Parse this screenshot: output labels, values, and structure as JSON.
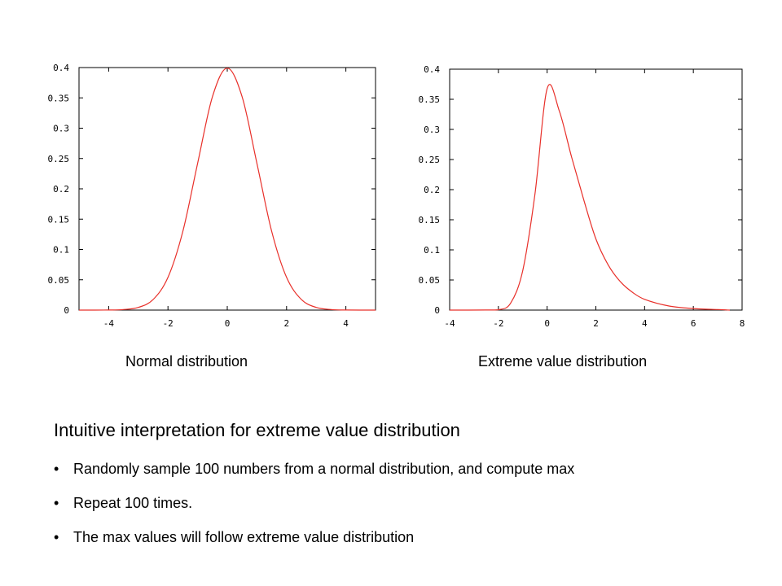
{
  "chart_data": [
    {
      "type": "line",
      "caption": "Normal distribution",
      "xlim": [
        -5,
        5
      ],
      "ylim": [
        0,
        0.4
      ],
      "x_ticks": [
        -4,
        -2,
        0,
        2,
        4
      ],
      "y_ticks": [
        0,
        0.05,
        0.1,
        0.15,
        0.2,
        0.25,
        0.3,
        0.35,
        0.4
      ],
      "x_tick_labels": [
        "-4",
        "-2",
        "0",
        "2",
        "4"
      ],
      "y_tick_labels": [
        "0",
        "0.05",
        "0.1",
        "0.15",
        "0.2",
        "0.25",
        "0.3",
        "0.35",
        "0.4"
      ],
      "line_color": "#e8302a",
      "series": [
        {
          "x": [
            -5,
            -4,
            -3.5,
            -3,
            -2.5,
            -2,
            -1.5,
            -1,
            -0.5,
            0,
            0.5,
            1,
            1.5,
            2,
            2.5,
            3,
            3.5,
            4,
            5
          ],
          "y": [
            0,
            0.0001,
            0.0009,
            0.0044,
            0.0175,
            0.054,
            0.1295,
            0.242,
            0.352,
            0.399,
            0.352,
            0.242,
            0.1295,
            0.054,
            0.0175,
            0.0044,
            0.0009,
            0.0001,
            0
          ]
        }
      ]
    },
    {
      "type": "line",
      "caption": "Extreme value distribution",
      "xlim": [
        -4,
        8
      ],
      "ylim": [
        0,
        0.4
      ],
      "x_ticks": [
        -4,
        -2,
        0,
        2,
        4,
        6,
        8
      ],
      "y_ticks": [
        0,
        0.05,
        0.1,
        0.15,
        0.2,
        0.25,
        0.3,
        0.35,
        0.4
      ],
      "x_tick_labels": [
        "-4",
        "-2",
        "0",
        "2",
        "4",
        "6",
        "8"
      ],
      "y_tick_labels": [
        "0",
        "0.05",
        "0.1",
        "0.15",
        "0.2",
        "0.25",
        "0.3",
        "0.35",
        "0.4"
      ],
      "line_color": "#e8302a",
      "series": [
        {
          "x": [
            -4,
            -2.5,
            -2,
            -1.5,
            -1,
            -0.5,
            0,
            0.5,
            1,
            1.5,
            2,
            2.5,
            3,
            3.5,
            4,
            5,
            6,
            7,
            7.5
          ],
          "y": [
            0,
            0.0001,
            0.0006,
            0.0113,
            0.066,
            0.1923,
            0.3679,
            0.3307,
            0.2546,
            0.1836,
            0.1182,
            0.0753,
            0.0474,
            0.0296,
            0.0179,
            0.0067,
            0.0025,
            0.0009,
            0
          ]
        }
      ]
    }
  ],
  "text": {
    "heading": "Intuitive interpretation for extreme value distribution",
    "bullets": [
      "Randomly sample 100 numbers from a normal distribution, and compute max",
      "Repeat 100 times.",
      "The max values will follow extreme value distribution"
    ],
    "bullet_symbol": "•"
  }
}
